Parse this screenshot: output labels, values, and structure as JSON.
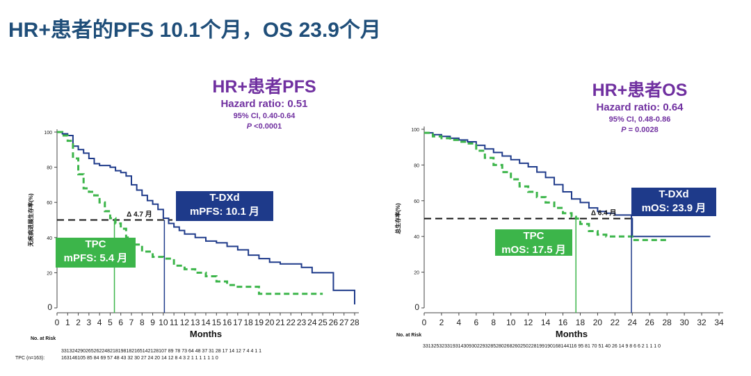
{
  "slide_title": "HR+患者的PFS 10.1个月，OS 23.9个月",
  "left_panel": {
    "heading": "HR+患者PFS",
    "hazard_label": "Hazard ratio:",
    "hazard_value": "0.51",
    "ci": "95% CI, 0.40-0.64",
    "p_italic": "P",
    "p_value": " <0.0001"
  },
  "right_panel": {
    "heading": "HR+患者OS",
    "hazard_label": "Hazard ratio:",
    "hazard_value": "0.64",
    "ci": "95% CI, 0.48-0.86",
    "p_italic": "P",
    "p_value": " = 0.0028"
  },
  "chart_data": [
    {
      "type": "line",
      "title": "HR+患者PFS",
      "xlabel": "Months",
      "ylabel": "无疾病进展生存率(%)",
      "xlim": [
        0,
        28
      ],
      "ylim": [
        0,
        100
      ],
      "x_ticks": [
        0,
        1,
        2,
        3,
        4,
        5,
        6,
        7,
        8,
        9,
        10,
        11,
        12,
        13,
        14,
        15,
        16,
        17,
        18,
        19,
        20,
        21,
        22,
        23,
        24,
        25,
        26,
        27,
        28
      ],
      "y_ticks": [
        0,
        20,
        40,
        60,
        80,
        100
      ],
      "colors": {
        "tdxd": "#1e3a8a",
        "tpc": "#3cb54a"
      },
      "reference_line": 50,
      "series": [
        {
          "name": "T-DXd",
          "color": "#1e3a8a",
          "style": "solid",
          "x": [
            0,
            0.5,
            1,
            1.5,
            2,
            2.5,
            3,
            3.5,
            4,
            4.5,
            5,
            5.5,
            6,
            6.5,
            7,
            7.5,
            8,
            8.5,
            9,
            9.5,
            10,
            10.5,
            11,
            11.5,
            12,
            13,
            14,
            15,
            16,
            17,
            18,
            19,
            20,
            21,
            22,
            23,
            24,
            25,
            26,
            27,
            28
          ],
          "y": [
            100,
            99,
            98,
            92,
            90,
            88,
            85,
            82,
            81,
            81,
            80,
            78,
            77,
            75,
            70,
            67,
            64,
            61,
            59,
            56,
            51,
            48,
            46,
            44,
            42,
            40,
            38,
            37,
            35,
            33,
            30,
            28,
            26,
            25,
            25,
            23,
            20,
            20,
            10,
            10,
            2
          ]
        },
        {
          "name": "TPC",
          "color": "#3cb54a",
          "style": "dashed",
          "x": [
            0,
            0.5,
            1,
            1.5,
            2,
            2.5,
            3,
            3.5,
            4,
            4.5,
            5,
            5.5,
            6,
            6.5,
            7,
            8,
            9,
            10,
            11,
            12,
            13,
            14,
            15,
            16,
            17,
            18,
            19,
            20,
            21,
            22,
            23,
            24,
            25
          ],
          "y": [
            100,
            98,
            95,
            85,
            76,
            68,
            66,
            64,
            60,
            55,
            51,
            48,
            45,
            40,
            36,
            32,
            29,
            28,
            24,
            22,
            20,
            18,
            15,
            13,
            12,
            12,
            8,
            8,
            8,
            8,
            8,
            8,
            8
          ]
        }
      ],
      "annotations": [
        {
          "label": "T-DXd",
          "sublabel": "mPFS: 10.1 月",
          "x": 10.1
        },
        {
          "label": "TPC",
          "sublabel": "mPFS: 5.4 月",
          "x": 5.4
        },
        {
          "label": "Δ 4.7 月"
        }
      ],
      "risk_table": {
        "header": "No. at Risk",
        "rows": [
          {
            "label": "",
            "values": "331324290265262248218198182165142128107 89  78  73  64  48  37  31  28  17  14  12  7   4   4   1   1"
          },
          {
            "label": "TPC (n=163):",
            "values": "163146105 85  84  69  57  48  43  32  30  27  24  20  14  12  8   4   3   2   1   1   1   1   1   1   0"
          }
        ]
      }
    },
    {
      "type": "line",
      "title": "HR+患者OS",
      "xlabel": "Months",
      "ylabel": "总生存率(%)",
      "xlim": [
        0,
        34
      ],
      "ylim": [
        0,
        100
      ],
      "x_ticks": [
        0,
        2,
        4,
        6,
        8,
        10,
        12,
        14,
        16,
        18,
        20,
        22,
        24,
        26,
        28,
        30,
        32,
        34
      ],
      "y_ticks": [
        0,
        20,
        40,
        60,
        80,
        100
      ],
      "colors": {
        "tdxd": "#1e3a8a",
        "tpc": "#3cb54a"
      },
      "reference_line": 50,
      "series": [
        {
          "name": "T-DXd",
          "color": "#1e3a8a",
          "style": "solid",
          "x": [
            0,
            1,
            2,
            3,
            4,
            5,
            6,
            7,
            8,
            9,
            10,
            11,
            12,
            13,
            14,
            15,
            16,
            17,
            18,
            19,
            20,
            21,
            22,
            23,
            23.9,
            24,
            26,
            28,
            30,
            32,
            33
          ],
          "y": [
            98,
            97,
            96,
            95,
            94,
            93,
            91,
            89,
            87,
            85,
            83,
            81,
            79,
            76,
            73,
            69,
            65,
            61,
            59,
            56,
            54,
            53,
            52,
            52,
            50,
            40,
            40,
            40,
            40,
            40,
            40
          ]
        },
        {
          "name": "TPC",
          "color": "#3cb54a",
          "style": "dashed",
          "x": [
            0,
            1,
            2,
            3,
            4,
            5,
            6,
            7,
            8,
            9,
            10,
            11,
            12,
            13,
            14,
            15,
            16,
            17,
            17.5,
            18,
            19,
            20,
            21,
            22,
            23,
            24,
            25,
            26,
            27,
            28
          ],
          "y": [
            98,
            96,
            95,
            94,
            93,
            92,
            88,
            84,
            80,
            76,
            72,
            68,
            65,
            62,
            59,
            56,
            53,
            51,
            50,
            47,
            43,
            41,
            40,
            40,
            40,
            38,
            38,
            38,
            38,
            38
          ]
        }
      ],
      "annotations": [
        {
          "label": "T-DXd",
          "sublabel": "mOS: 23.9 月",
          "x": 23.9
        },
        {
          "label": "TPC",
          "sublabel": "mOS: 17.5 月",
          "x": 17.5
        },
        {
          "label": "Δ 6.4 月"
        }
      ],
      "risk_table": {
        "header": "No. at Risk",
        "rows": [
          {
            "label": "",
            "values": "331325323319314309302293285280268260250228199190168144116 95  81  70  51  40  26  14  9   8   6   6   2   1   1   1   0"
          }
        ]
      }
    }
  ]
}
